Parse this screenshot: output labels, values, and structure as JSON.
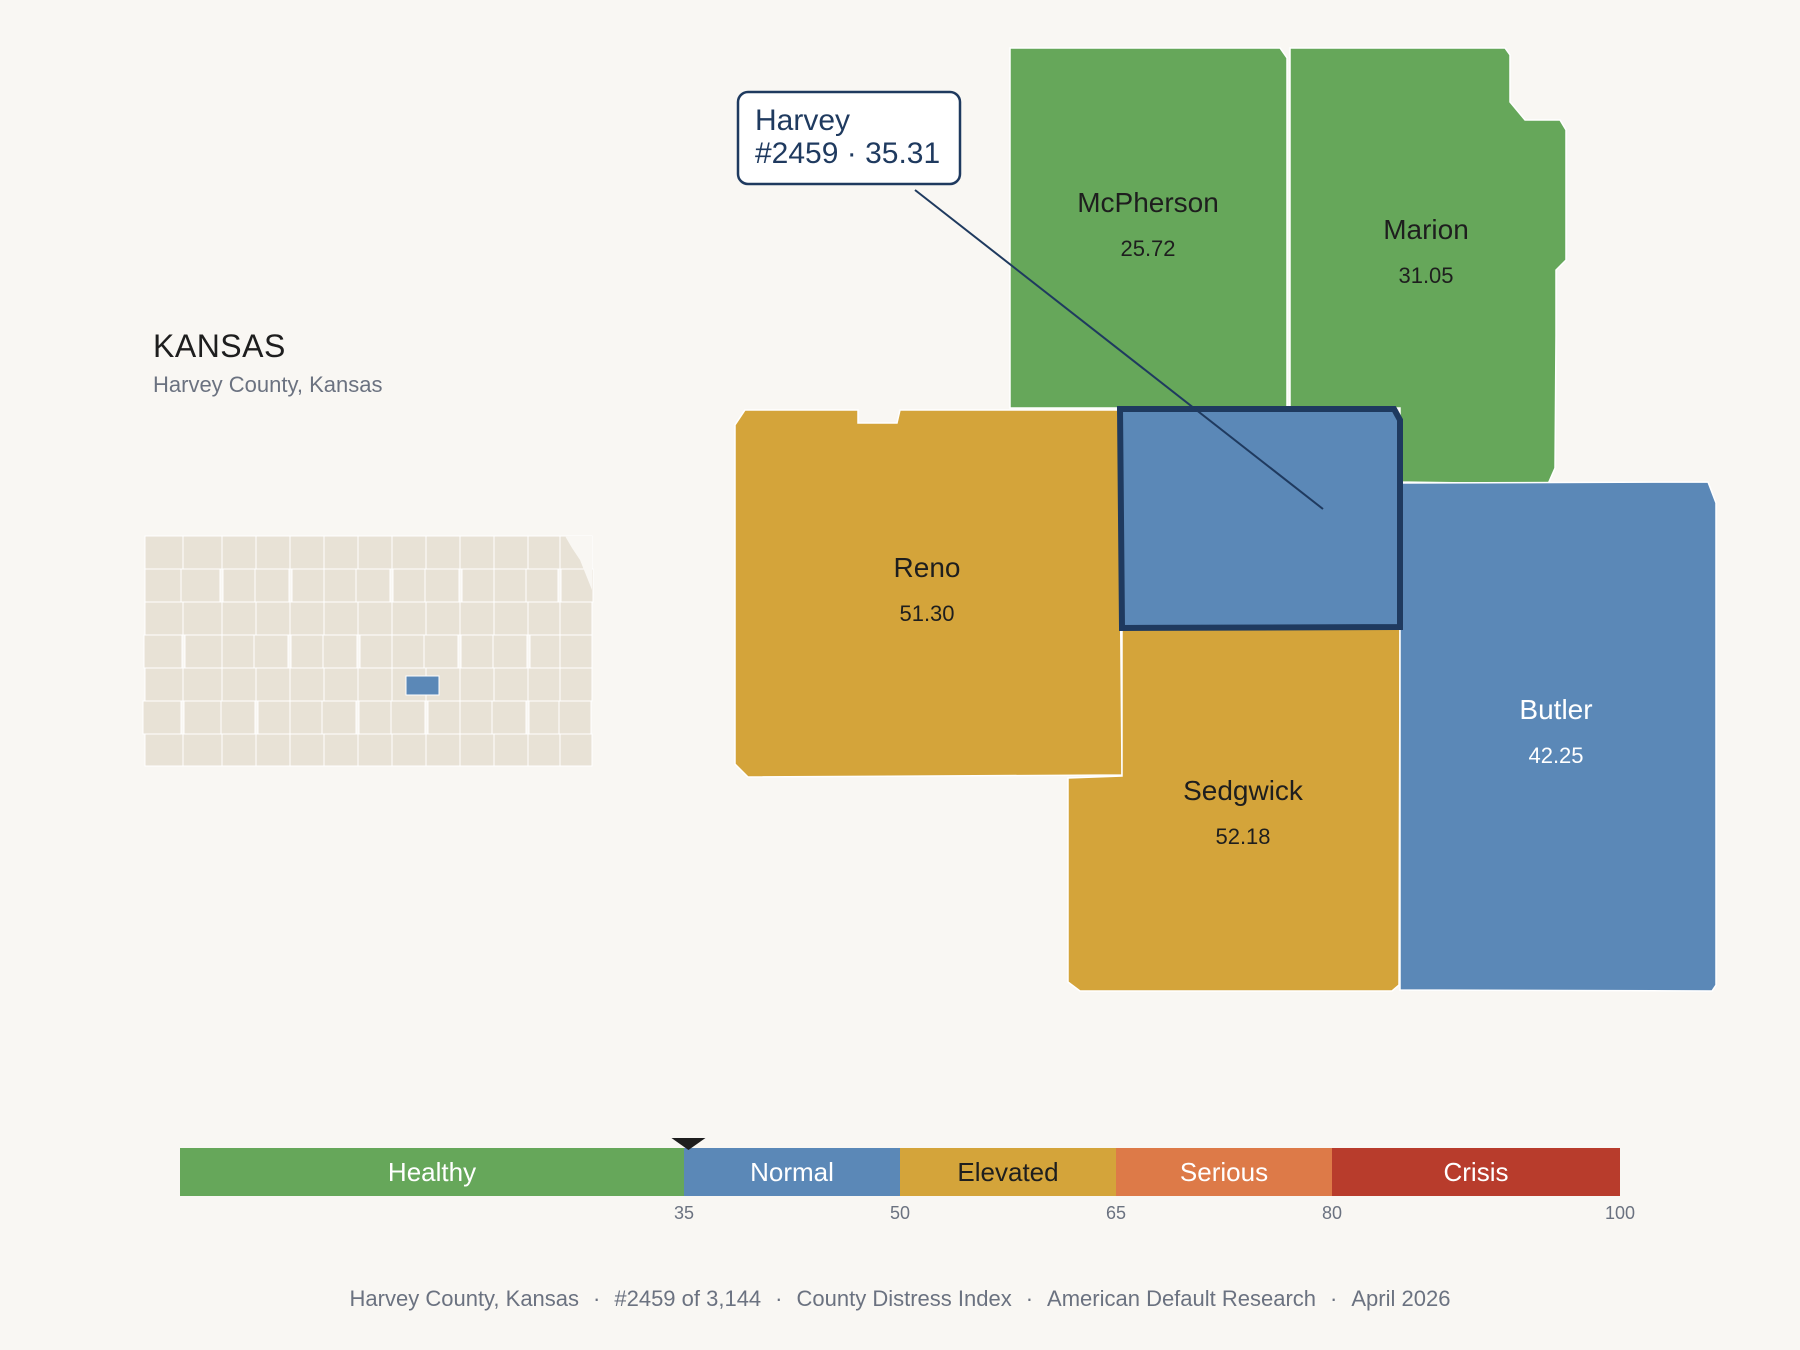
{
  "state": {
    "title": "KANSAS",
    "subtitle": "Harvey County, Kansas"
  },
  "focus_county": {
    "name": "Harvey",
    "rank": "#2459",
    "score": "35.31",
    "label": "#2459 · 35.31",
    "color": "#5b88b7"
  },
  "counties": [
    {
      "name": "McPherson",
      "value": "25.72",
      "tier": "Healthy"
    },
    {
      "name": "Marion",
      "value": "31.05",
      "tier": "Healthy"
    },
    {
      "name": "Reno",
      "value": "51.30",
      "tier": "Elevated"
    },
    {
      "name": "Butler",
      "value": "42.25",
      "tier": "Normal"
    },
    {
      "name": "Sedgwick",
      "value": "52.18",
      "tier": "Elevated"
    }
  ],
  "scale": {
    "bands": [
      {
        "label": "Healthy",
        "from": 0,
        "to": 35,
        "color": "#66a75a"
      },
      {
        "label": "Normal",
        "from": 35,
        "to": 50,
        "color": "#5b88b7"
      },
      {
        "label": "Elevated",
        "from": 50,
        "to": 65,
        "color": "#d4a43a"
      },
      {
        "label": "Serious",
        "from": 65,
        "to": 80,
        "color": "#dd7a48"
      },
      {
        "label": "Crisis",
        "from": 80,
        "to": 100,
        "color": "#b83c2c"
      }
    ],
    "ticks": [
      "35",
      "50",
      "65",
      "80",
      "100"
    ],
    "marker_value": 35.31
  },
  "colors": {
    "healthy": "#66a75a",
    "normal": "#5b88b7",
    "elevated": "#d4a43a",
    "serious": "#dd7a48",
    "crisis": "#b83c2c",
    "outline": "#1f3a5f",
    "inset_fill": "#e8e2d6"
  },
  "footer": {
    "location": "Harvey County, Kansas",
    "rank": "#2459 of 3,144",
    "index": "County Distress Index",
    "source": "American Default Research",
    "date": "April 2026",
    "separator": "·"
  }
}
